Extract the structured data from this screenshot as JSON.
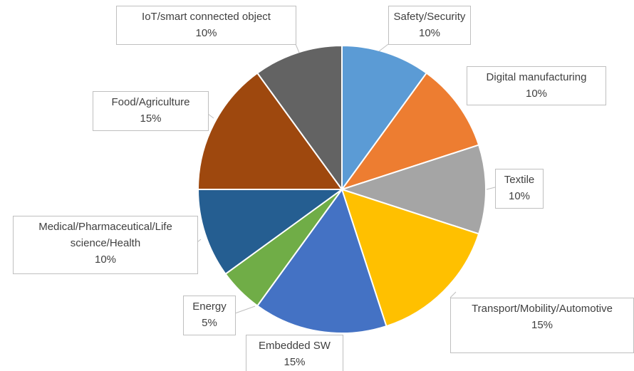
{
  "chart_data": {
    "type": "pie",
    "categories": [
      "Safety/Security",
      "Digital manufacturing",
      "Textile",
      "Transport/Mobility/Automotive",
      "Embedded SW",
      "Energy",
      "Medical/Pharmaceutical/Life science/Health",
      "Food/Agriculture",
      "IoT/smart connected object"
    ],
    "values": [
      10,
      10,
      10,
      15,
      15,
      5,
      10,
      15,
      10
    ],
    "value_labels": [
      "10%",
      "10%",
      "10%",
      "15%",
      "15%",
      "5%",
      "10%",
      "15%",
      "10%"
    ],
    "colors": [
      "#5b9bd5",
      "#ed7d31",
      "#a5a5a5",
      "#ffc000",
      "#4472c4",
      "#70ad47",
      "#255e91",
      "#9e480e",
      "#636363"
    ]
  }
}
